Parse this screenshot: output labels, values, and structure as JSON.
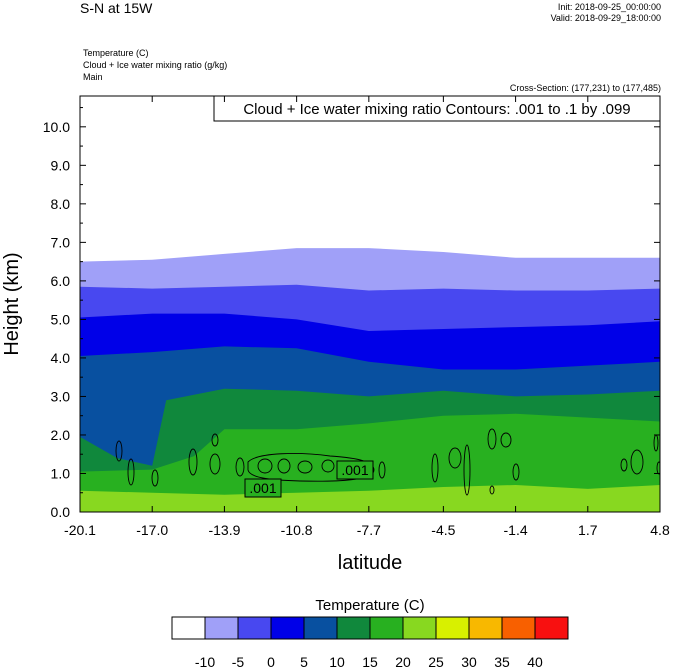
{
  "header": {
    "title": "S-N at 15W",
    "init": "Init: 2018-09-25_00:00:00",
    "valid": "Valid: 2018-09-29_18:00:00",
    "fields": [
      "Temperature   (C)",
      "Cloud + Ice water mixing ratio   (g/kg)",
      "Main"
    ],
    "cross_section": "Cross-Section: (177,231) to (177,485)"
  },
  "chart_data": {
    "type": "contour",
    "contour_label": "Cloud + Ice water mixing ratio Contours: .001 to .1 by .099",
    "xlabel": "latitude",
    "ylabel": "Height (km)",
    "xlim": [
      -20.1,
      4.8
    ],
    "ylim": [
      0,
      10.8
    ],
    "x_ticks": [
      "-20.1",
      "-17.0",
      "-13.9",
      "-10.8",
      "-7.7",
      "-4.5",
      "-1.4",
      "1.7",
      "4.8"
    ],
    "y_ticks": [
      "0.0",
      "1.0",
      "2.0",
      "3.0",
      "4.0",
      "5.0",
      "6.0",
      "7.0",
      "8.0",
      "9.0",
      "10.0"
    ],
    "contour_labels": [
      ".001",
      ".001"
    ],
    "temperature_bands": [
      {
        "low": -10,
        "high": -5,
        "color": "#a0a0f8",
        "top": [
          [
            -20.1,
            6.5
          ],
          [
            -17.0,
            6.55
          ],
          [
            -13.9,
            6.7
          ],
          [
            -10.8,
            6.85
          ],
          [
            -7.7,
            6.85
          ],
          [
            -4.5,
            6.75
          ],
          [
            -1.4,
            6.6
          ],
          [
            1.7,
            6.6
          ],
          [
            4.8,
            6.6
          ]
        ]
      },
      {
        "low": -5,
        "high": 0,
        "color": "#4848f0",
        "top": [
          [
            -20.1,
            5.85
          ],
          [
            -17.0,
            5.8
          ],
          [
            -13.9,
            5.85
          ],
          [
            -10.8,
            5.9
          ],
          [
            -7.7,
            5.75
          ],
          [
            -4.5,
            5.8
          ],
          [
            -1.4,
            5.75
          ],
          [
            1.7,
            5.75
          ],
          [
            4.8,
            5.8
          ]
        ]
      },
      {
        "low": 0,
        "high": 5,
        "color": "#0000e8",
        "top": [
          [
            -20.1,
            5.05
          ],
          [
            -17.0,
            5.15
          ],
          [
            -13.9,
            5.15
          ],
          [
            -10.8,
            5.0
          ],
          [
            -7.7,
            4.7
          ],
          [
            -4.5,
            4.75
          ],
          [
            -1.4,
            4.8
          ],
          [
            1.7,
            4.85
          ],
          [
            4.8,
            4.95
          ]
        ]
      },
      {
        "low": 5,
        "high": 10,
        "color": "#0850a0",
        "top": [
          [
            -20.1,
            4.05
          ],
          [
            -17.0,
            4.15
          ],
          [
            -13.9,
            4.3
          ],
          [
            -10.8,
            4.25
          ],
          [
            -7.7,
            3.9
          ],
          [
            -4.5,
            3.7
          ],
          [
            -1.4,
            3.7
          ],
          [
            1.7,
            3.8
          ],
          [
            4.8,
            3.9
          ]
        ]
      },
      {
        "low": 10,
        "high": 15,
        "color": "#10883c",
        "top": [
          [
            -20.1,
            1.95
          ],
          [
            -18.5,
            1.4
          ],
          [
            -17.0,
            1.2
          ],
          [
            -16.4,
            2.9
          ],
          [
            -13.9,
            3.2
          ],
          [
            -10.8,
            3.15
          ],
          [
            -7.7,
            3.0
          ],
          [
            -4.5,
            3.15
          ],
          [
            -1.4,
            3.0
          ],
          [
            1.7,
            3.05
          ],
          [
            4.8,
            3.15
          ]
        ]
      },
      {
        "low": 15,
        "high": 20,
        "color": "#28b020",
        "top": [
          [
            -20.1,
            1.05
          ],
          [
            -17.0,
            1.1
          ],
          [
            -15.2,
            1.45
          ],
          [
            -13.9,
            2.15
          ],
          [
            -10.8,
            2.15
          ],
          [
            -7.7,
            2.3
          ],
          [
            -4.5,
            2.5
          ],
          [
            -1.4,
            2.55
          ],
          [
            1.7,
            2.45
          ],
          [
            4.8,
            2.35
          ]
        ]
      },
      {
        "low": 20,
        "high": 25,
        "color": "#88d820",
        "top": [
          [
            -20.1,
            0.55
          ],
          [
            -17.0,
            0.5
          ],
          [
            -13.9,
            0.45
          ],
          [
            -10.8,
            0.5
          ],
          [
            -7.7,
            0.55
          ],
          [
            -4.5,
            0.65
          ],
          [
            -1.4,
            0.7
          ],
          [
            1.7,
            0.6
          ],
          [
            4.8,
            0.7
          ]
        ]
      }
    ],
    "colorbar": {
      "title": "Temperature  (C)",
      "colors": [
        "#ffffff",
        "#a0a0f8",
        "#4848f0",
        "#0000e8",
        "#0850a0",
        "#10883c",
        "#28b020",
        "#88d820",
        "#d8f000",
        "#f8b800",
        "#f86000",
        "#f81010"
      ],
      "labels": [
        "-10",
        "-5",
        "0",
        "5",
        "10",
        "15",
        "20",
        "25",
        "30",
        "35",
        "40"
      ]
    }
  }
}
